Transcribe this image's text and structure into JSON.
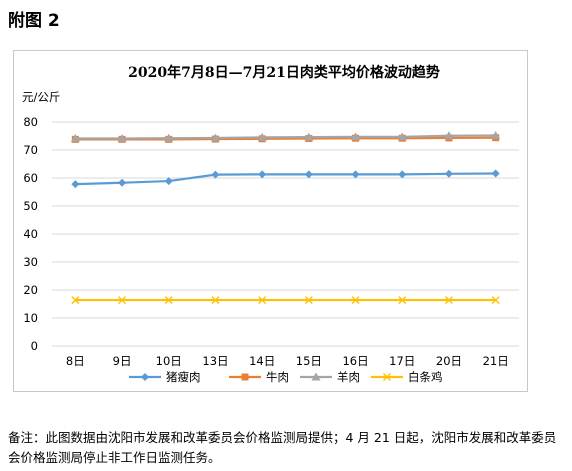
{
  "figure_label": "附图 2",
  "note": "备注：此图数据由沈阳市发展和改革委员会价格监测局提供；4 月 21 日起，沈阳市发展和改革委员会价格监测局停止非工作日监测任务。",
  "chart_data": {
    "type": "line",
    "title": "2020年7月8日—7月21日肉类平均价格波动趋势",
    "ylabel": "元/公斤",
    "xlabel": "",
    "ylim": [
      0,
      80
    ],
    "yticks": [
      0,
      10,
      20,
      30,
      40,
      50,
      60,
      70,
      80
    ],
    "grid": true,
    "legend_position": "bottom",
    "categories": [
      "8日",
      "9日",
      "10日",
      "13日",
      "14日",
      "15日",
      "16日",
      "17日",
      "20日",
      "21日"
    ],
    "series": [
      {
        "name": "猪瘦肉",
        "color": "#5b9bd5",
        "marker": "diamond",
        "values": [
          57.8,
          58.3,
          58.9,
          61.2,
          61.3,
          61.3,
          61.3,
          61.3,
          61.5,
          61.6
        ]
      },
      {
        "name": "牛肉",
        "color": "#ed7d31",
        "marker": "square",
        "values": [
          73.8,
          73.8,
          73.8,
          73.9,
          74.0,
          74.1,
          74.2,
          74.2,
          74.3,
          74.4
        ]
      },
      {
        "name": "羊肉",
        "color": "#a5a5a5",
        "marker": "triangle",
        "values": [
          74.1,
          74.1,
          74.2,
          74.3,
          74.5,
          74.6,
          74.7,
          74.7,
          75.1,
          75.2
        ]
      },
      {
        "name": "白条鸡",
        "color": "#ffc000",
        "marker": "x",
        "values": [
          16.4,
          16.4,
          16.4,
          16.4,
          16.4,
          16.4,
          16.4,
          16.4,
          16.4,
          16.4
        ]
      }
    ]
  }
}
